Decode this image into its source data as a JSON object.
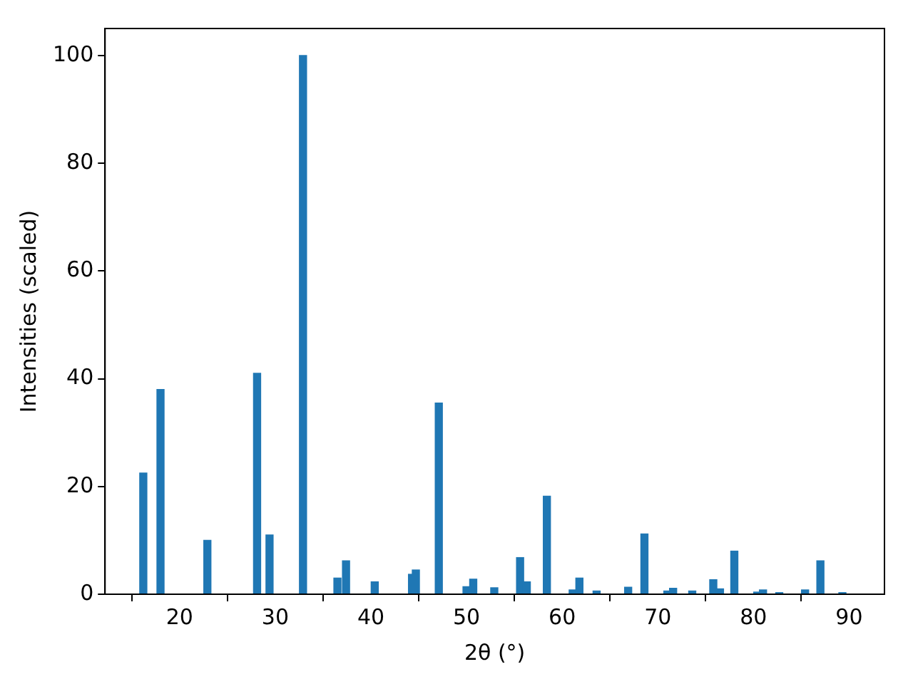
{
  "chart_data": {
    "type": "bar",
    "xlabel": "2θ (°)",
    "ylabel": "Intensities (scaled)",
    "x": [
      16.2,
      18.0,
      22.9,
      28.1,
      29.4,
      32.9,
      36.5,
      37.4,
      40.4,
      44.3,
      44.7,
      47.1,
      50.0,
      50.7,
      52.9,
      55.6,
      56.3,
      58.4,
      61.1,
      61.8,
      63.6,
      66.9,
      68.6,
      71.0,
      71.6,
      73.6,
      75.8,
      76.5,
      78.0,
      80.4,
      81.0,
      82.7,
      85.4,
      87.0,
      89.3
    ],
    "values": [
      22.5,
      38,
      10,
      41,
      11,
      100,
      3,
      6.2,
      2.3,
      3.7,
      4.5,
      35.5,
      1.4,
      2.8,
      1.2,
      6.8,
      2.3,
      18.2,
      0.8,
      3,
      0.6,
      1.3,
      11.2,
      0.6,
      1.1,
      0.6,
      2.7,
      1,
      8,
      0.4,
      0.8,
      0.3,
      0.8,
      6.2,
      0.3
    ],
    "color": "#1f77b4",
    "xlim": [
      12.2,
      93.7
    ],
    "xticks": [
      20,
      30,
      40,
      50,
      60,
      70,
      80,
      90
    ],
    "ylim": [
      0,
      105
    ],
    "yticks": [
      0,
      20,
      40,
      60,
      80,
      100
    ],
    "grid": false,
    "legend": false
  }
}
